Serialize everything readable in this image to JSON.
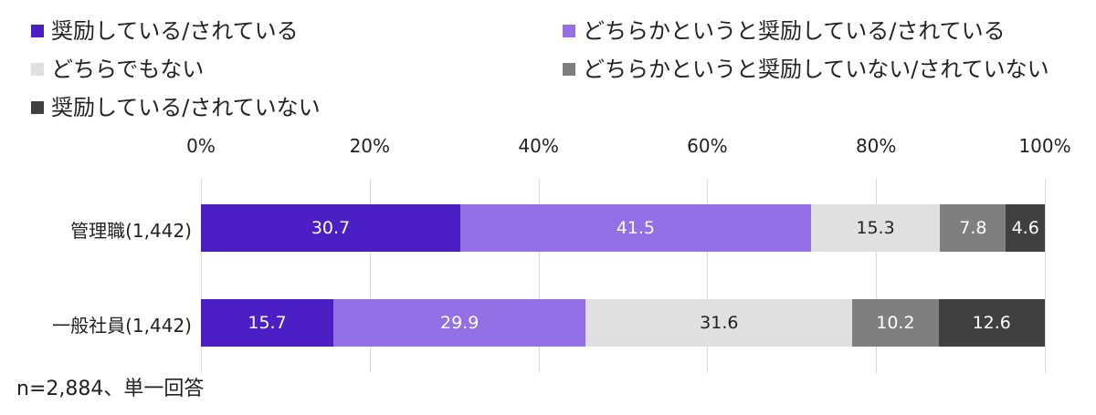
{
  "chart_data": {
    "type": "bar",
    "orientation": "horizontal",
    "stacked": true,
    "percent_axis": true,
    "categories": [
      "管理職(1,442)",
      "一般社員(1,442)"
    ],
    "series": [
      {
        "name": "奨励している/されている",
        "values": [
          30.7,
          15.7
        ],
        "color": "#4b1fc3",
        "label_color": "#ffffff"
      },
      {
        "name": "どちらかというと奨励している/されている",
        "values": [
          41.5,
          29.9
        ],
        "color": "#9370e6",
        "label_color": "#ffffff"
      },
      {
        "name": "どちらでもない",
        "values": [
          15.3,
          31.6
        ],
        "color": "#e0e0e0",
        "label_color": "#222222"
      },
      {
        "name": "どちらかというと奨励していない/されていない",
        "values": [
          7.8,
          10.2
        ],
        "color": "#7f7f7f",
        "label_color": "#ffffff"
      },
      {
        "name": "奨励している/されていない",
        "values": [
          4.6,
          12.6
        ],
        "color": "#404040",
        "label_color": "#ffffff"
      }
    ],
    "x_ticks": [
      "0%",
      "20%",
      "40%",
      "60%",
      "80%",
      "100%"
    ],
    "xlim": [
      0,
      100
    ],
    "grid": true,
    "legend_position": "top",
    "note": "n=2,884、単一回答"
  }
}
